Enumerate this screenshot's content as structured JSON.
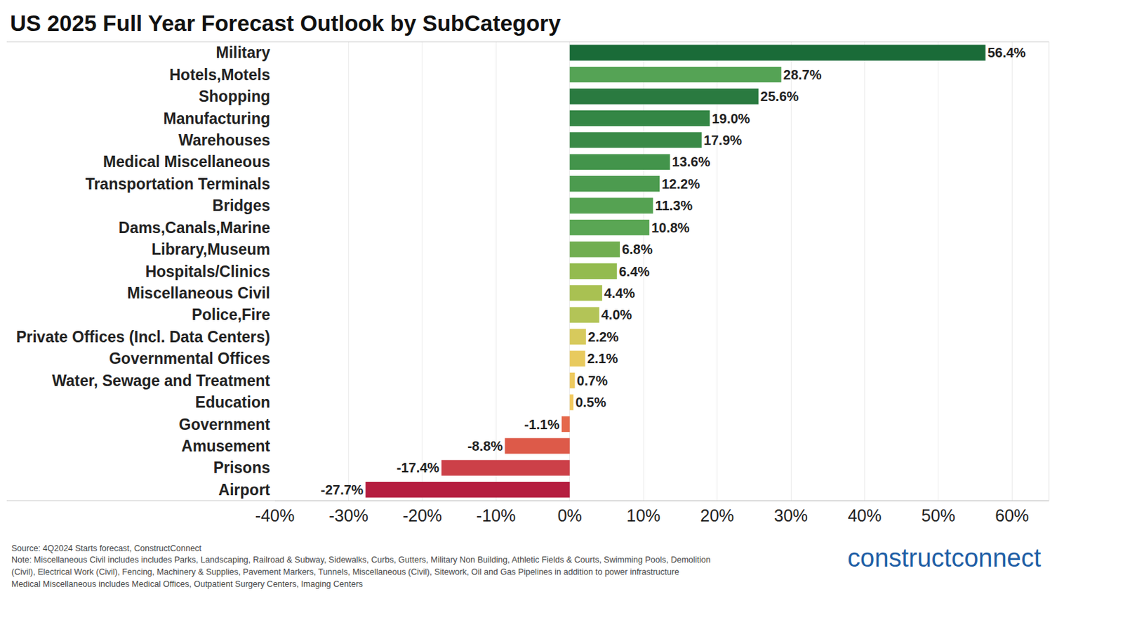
{
  "chart_data": {
    "type": "bar",
    "orientation": "horizontal",
    "title": "US 2025 Full Year Forecast Outlook by SubCategory",
    "categories": [
      "Military",
      "Hotels,Motels",
      "Shopping",
      "Manufacturing",
      "Warehouses",
      "Medical Miscellaneous",
      "Transportation Terminals",
      "Bridges",
      "Dams,Canals,Marine",
      "Library,Museum",
      "Hospitals/Clinics",
      "Miscellaneous Civil",
      "Police,Fire",
      "Private Offices (Incl. Data Centers)",
      "Governmental Offices",
      "Water, Sewage and Treatment",
      "Education",
      "Government",
      "Amusement",
      "Prisons",
      "Airport"
    ],
    "values": [
      56.4,
      28.7,
      25.6,
      19.0,
      17.9,
      13.6,
      12.2,
      11.3,
      10.8,
      6.8,
      6.4,
      4.4,
      4.0,
      2.2,
      2.1,
      0.7,
      0.5,
      -1.1,
      -8.8,
      -17.4,
      -27.7
    ],
    "value_labels": [
      "56.4%",
      "28.7%",
      "25.6%",
      "19.0%",
      "17.9%",
      "13.6%",
      "12.2%",
      "11.3%",
      "10.8%",
      "6.8%",
      "6.4%",
      "4.4%",
      "4.0%",
      "2.2%",
      "2.1%",
      "0.7%",
      "0.5%",
      "-1.1%",
      "-8.8%",
      "-17.4%",
      "-27.7%"
    ],
    "colors": [
      "#1a6b38",
      "#55a355",
      "#2a7a40",
      "#348645",
      "#3a8a47",
      "#43944b",
      "#4c9b4f",
      "#55a252",
      "#5aa654",
      "#71ae51",
      "#93bb4f",
      "#a9c152",
      "#b3c457",
      "#d7ca5c",
      "#e8ca5e",
      "#eeca60",
      "#f2c95e",
      "#e5684b",
      "#dd5a49",
      "#cc4048",
      "#b51d3f"
    ],
    "xlim": [
      -40,
      65
    ],
    "xticks": [
      {
        "value": -40,
        "label": "-40%"
      },
      {
        "value": -30,
        "label": "-30%"
      },
      {
        "value": -20,
        "label": "-20%"
      },
      {
        "value": -10,
        "label": "-10%"
      },
      {
        "value": 0,
        "label": "0%"
      },
      {
        "value": 10,
        "label": "10%"
      },
      {
        "value": 20,
        "label": "20%"
      },
      {
        "value": 30,
        "label": "30%"
      },
      {
        "value": 40,
        "label": "40%"
      },
      {
        "value": 50,
        "label": "50%"
      },
      {
        "value": 60,
        "label": "60%"
      }
    ],
    "grid": true,
    "data_labels": true,
    "annotations": [
      "Source: 4Q2024 Starts forecast, ConstructConnect",
      "Note: Miscellaneous Civil includes includes Parks, Landscaping, Railroad & Subway, Sidewalks, Curbs, Gutters, Military Non Building, Athletic Fields & Courts, Swimming Pools, Demolition",
      "(Civil), Electrical Work (Civil), Fencing, Machinery & Supplies, Pavement Markers, Tunnels, Miscellaneous (Civil), Sitework, Oil and Gas Pipelines in addition to power infrastructure",
      "Medical Miscellaneous includes Medical Offices, Outpatient Surgery Centers, Imaging Centers",
      "constructconnect"
    ]
  }
}
